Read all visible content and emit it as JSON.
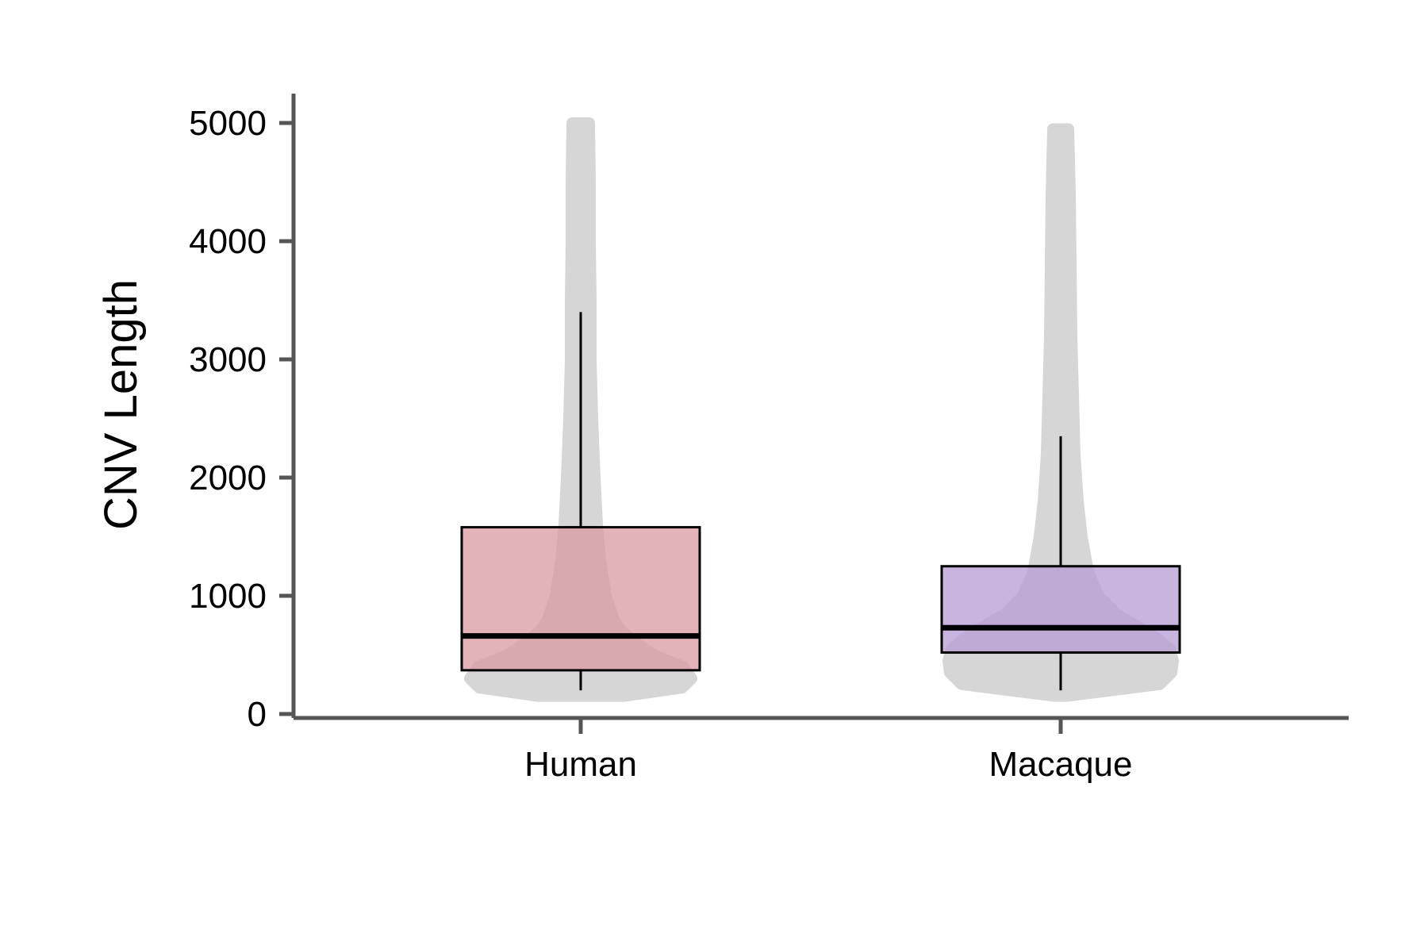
{
  "chart_data": {
    "type": "boxplot",
    "title": "",
    "xlabel": "",
    "ylabel": "CNV Length",
    "ylim": [
      0,
      5000
    ],
    "yticks": [
      0,
      1000,
      2000,
      3000,
      4000,
      5000
    ],
    "grid": false,
    "legend": "none",
    "categories": [
      "Human",
      "Macaque"
    ],
    "series": [
      {
        "category": "Human",
        "color": "#d99a9f",
        "min": 200,
        "q1": 370,
        "median": 660,
        "q3": 1580,
        "max": 3400,
        "violin": {
          "y": [
            150,
            220,
            300,
            400,
            500,
            600,
            700,
            800,
            1000,
            1300,
            1600,
            2000,
            2500,
            3000,
            3500,
            4000,
            4500,
            5000
          ],
          "half_width": [
            55,
            128,
            140,
            130,
            92,
            70,
            52,
            42,
            32,
            25,
            21,
            18,
            15,
            13,
            13,
            12,
            12,
            11
          ]
        }
      },
      {
        "category": "Macaque",
        "color": "#b79ad4",
        "min": 200,
        "q1": 520,
        "median": 730,
        "q3": 1250,
        "max": 2350,
        "violin": {
          "y": [
            150,
            250,
            350,
            450,
            550,
            650,
            750,
            850,
            1000,
            1200,
            1500,
            1800,
            2200,
            2700,
            3200,
            3800,
            4400,
            4950
          ],
          "half_width": [
            8,
            125,
            140,
            142,
            138,
            120,
            95,
            70,
            48,
            35,
            27,
            22,
            18,
            16,
            14,
            13,
            12,
            10
          ]
        }
      }
    ]
  }
}
